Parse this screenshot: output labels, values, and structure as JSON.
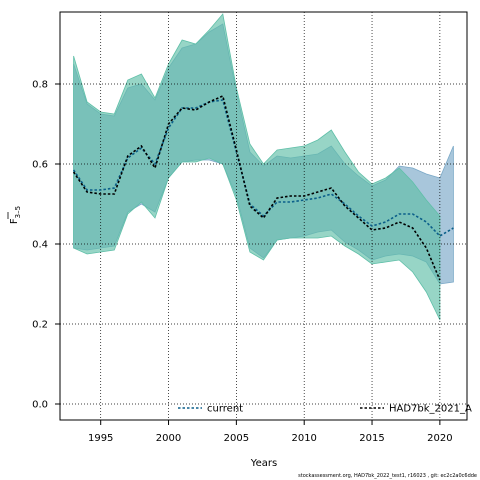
{
  "chart_data": {
    "type": "line",
    "xlabel": "Years",
    "ylabel_main": "F",
    "ylabel_sub": "3–5",
    "xlim": [
      1992,
      2022
    ],
    "ylim": [
      -0.04,
      0.98
    ],
    "x_ticks": [
      1995,
      2000,
      2005,
      2010,
      2015,
      2020
    ],
    "y_ticks": [
      0.0,
      0.2,
      0.4,
      0.6,
      0.8
    ],
    "y_tick_labels": [
      "0.0",
      "0.2",
      "0.4",
      "0.6",
      "0.8"
    ],
    "grid": true,
    "legend_placement": "bottom",
    "footnote": "stockassessment.org, HAD7bk_2022_test1, r16023 , git: ec2c2a0c6dde",
    "series": [
      {
        "name": "current",
        "line_color": "#0b5f8a",
        "band_color": "#7aa8c7",
        "x": [
          1993,
          1994,
          1995,
          1996,
          1997,
          1998,
          1999,
          2000,
          2001,
          2002,
          2003,
          2004,
          2005,
          2006,
          2007,
          2008,
          2009,
          2010,
          2011,
          2012,
          2013,
          2014,
          2015,
          2016,
          2017,
          2018,
          2019,
          2020,
          2021
        ],
        "y": [
          0.585,
          0.535,
          0.535,
          0.54,
          0.615,
          0.64,
          0.6,
          0.69,
          0.74,
          0.74,
          0.755,
          0.76,
          0.63,
          0.5,
          0.47,
          0.505,
          0.505,
          0.51,
          0.515,
          0.525,
          0.5,
          0.47,
          0.445,
          0.455,
          0.475,
          0.475,
          0.455,
          0.42,
          0.44
        ],
        "lower": [
          0.39,
          0.385,
          0.39,
          0.395,
          0.48,
          0.5,
          0.48,
          0.565,
          0.605,
          0.61,
          0.61,
          0.6,
          0.52,
          0.39,
          0.365,
          0.41,
          0.415,
          0.42,
          0.43,
          0.435,
          0.405,
          0.385,
          0.36,
          0.37,
          0.375,
          0.37,
          0.355,
          0.3,
          0.305
        ],
        "upper": [
          0.85,
          0.75,
          0.725,
          0.72,
          0.79,
          0.8,
          0.76,
          0.84,
          0.89,
          0.9,
          0.93,
          0.95,
          0.78,
          0.63,
          0.595,
          0.62,
          0.615,
          0.62,
          0.625,
          0.645,
          0.6,
          0.57,
          0.545,
          0.56,
          0.595,
          0.59,
          0.575,
          0.565,
          0.645
        ]
      },
      {
        "name": "HAD7bk_2021_A",
        "line_color": "#000000",
        "band_color": "#5fbfa8",
        "x": [
          1993,
          1994,
          1995,
          1996,
          1997,
          1998,
          1999,
          2000,
          2001,
          2002,
          2003,
          2004,
          2005,
          2006,
          2007,
          2008,
          2009,
          2010,
          2011,
          2012,
          2013,
          2014,
          2015,
          2016,
          2017,
          2018,
          2019,
          2020
        ],
        "y": [
          0.58,
          0.53,
          0.525,
          0.525,
          0.62,
          0.645,
          0.59,
          0.7,
          0.74,
          0.735,
          0.755,
          0.77,
          0.635,
          0.495,
          0.465,
          0.515,
          0.52,
          0.52,
          0.53,
          0.54,
          0.495,
          0.465,
          0.435,
          0.44,
          0.455,
          0.44,
          0.39,
          0.31
        ],
        "lower": [
          0.39,
          0.375,
          0.38,
          0.385,
          0.475,
          0.505,
          0.465,
          0.565,
          0.605,
          0.605,
          0.615,
          0.6,
          0.51,
          0.38,
          0.36,
          0.41,
          0.415,
          0.415,
          0.415,
          0.42,
          0.395,
          0.375,
          0.35,
          0.355,
          0.36,
          0.33,
          0.28,
          0.21
        ],
        "upper": [
          0.87,
          0.755,
          0.73,
          0.725,
          0.81,
          0.825,
          0.765,
          0.85,
          0.91,
          0.9,
          0.935,
          0.975,
          0.79,
          0.65,
          0.6,
          0.635,
          0.64,
          0.645,
          0.66,
          0.685,
          0.63,
          0.58,
          0.55,
          0.565,
          0.59,
          0.555,
          0.51,
          0.47
        ]
      }
    ]
  }
}
